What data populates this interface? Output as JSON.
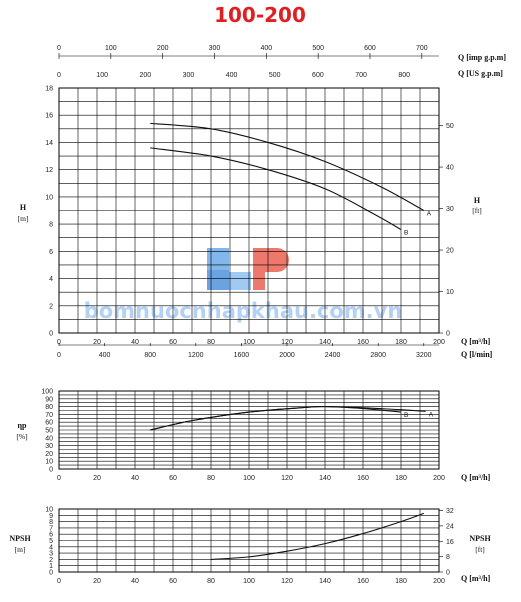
{
  "title": "100-200",
  "watermark": "bomnuocnhapkhau.com.vn",
  "chart_data": [
    {
      "type": "line",
      "ylabel": "H",
      "ylabel_unit": "[m]",
      "ylabel_right": "H",
      "ylabel_right_unit": "[ft]",
      "xlabel_m3h": "Q [m³/h]",
      "xlabel_lmin": "Q [l/min]",
      "xlabel_imp": "Q [imp g.p.m]",
      "xlabel_us": "Q [US g.p.m]",
      "xlim": [
        0,
        200
      ],
      "ylim": [
        0,
        18
      ],
      "y_ticks": [
        "0",
        "2",
        "4",
        "6",
        "8",
        "10",
        "12",
        "14",
        "16",
        "18"
      ],
      "y_right_ticks": [
        "0",
        "10",
        "20",
        "30",
        "40",
        "50"
      ],
      "x_ticks_m3h": [
        "0",
        "20",
        "40",
        "60",
        "80",
        "100",
        "120",
        "140",
        "160",
        "180",
        "200"
      ],
      "x_ticks_lmin": [
        "0",
        "400",
        "800",
        "1200",
        "1600",
        "2000",
        "2400",
        "2800",
        "3200"
      ],
      "x_ticks_imp": [
        "0",
        "100",
        "200",
        "300",
        "400",
        "500",
        "600",
        "700"
      ],
      "x_ticks_us": [
        "0",
        "100",
        "200",
        "300",
        "400",
        "500",
        "600",
        "700",
        "800"
      ],
      "series": [
        {
          "name": "A",
          "x": [
            48,
            80,
            110,
            140,
            170,
            192
          ],
          "y": [
            15.4,
            15.0,
            14.0,
            12.6,
            10.7,
            9.0
          ]
        },
        {
          "name": "B",
          "x": [
            48,
            80,
            110,
            140,
            165,
            180
          ],
          "y": [
            13.6,
            13.0,
            12.0,
            10.6,
            8.8,
            7.6
          ]
        }
      ]
    },
    {
      "type": "line",
      "ylabel": "ηp",
      "ylabel_unit": "[%]",
      "xlabel": "Q [m³/h]",
      "xlim": [
        0,
        200
      ],
      "ylim": [
        0,
        100
      ],
      "y_ticks": [
        "0",
        "10",
        "20",
        "30",
        "40",
        "50",
        "60",
        "70",
        "80",
        "90",
        "100"
      ],
      "x_ticks": [
        "0",
        "20",
        "40",
        "60",
        "80",
        "100",
        "120",
        "140",
        "160",
        "180",
        "200"
      ],
      "series": [
        {
          "name": "A",
          "x": [
            48,
            70,
            100,
            130,
            140,
            160,
            180,
            193
          ],
          "y": [
            50,
            62,
            73,
            79,
            80,
            78.5,
            76,
            74
          ]
        },
        {
          "name": "B",
          "x": [
            48,
            70,
            100,
            130,
            140,
            160,
            180
          ],
          "y": [
            50,
            62,
            73,
            79,
            80,
            77.5,
            73
          ]
        }
      ]
    },
    {
      "type": "line",
      "ylabel": "NPSH",
      "ylabel_unit": "[m]",
      "ylabel_right": "NPSH",
      "ylabel_right_unit": "[ft]",
      "xlabel": "Q [m³/h]",
      "xlim": [
        0,
        200
      ],
      "ylim": [
        0,
        10
      ],
      "y_ticks": [
        "0",
        "1",
        "2",
        "3",
        "4",
        "5",
        "6",
        "7",
        "8",
        "9",
        "10"
      ],
      "y_right_ticks": [
        "0",
        "8",
        "16",
        "24",
        "32"
      ],
      "x_ticks": [
        "0",
        "20",
        "40",
        "60",
        "80",
        "100",
        "120",
        "140",
        "160",
        "180",
        "200"
      ],
      "series": [
        {
          "x": [
            80,
            100,
            120,
            140,
            160,
            180,
            192
          ],
          "y": [
            2.0,
            2.4,
            3.3,
            4.5,
            6.1,
            8.0,
            9.3
          ]
        }
      ]
    }
  ]
}
